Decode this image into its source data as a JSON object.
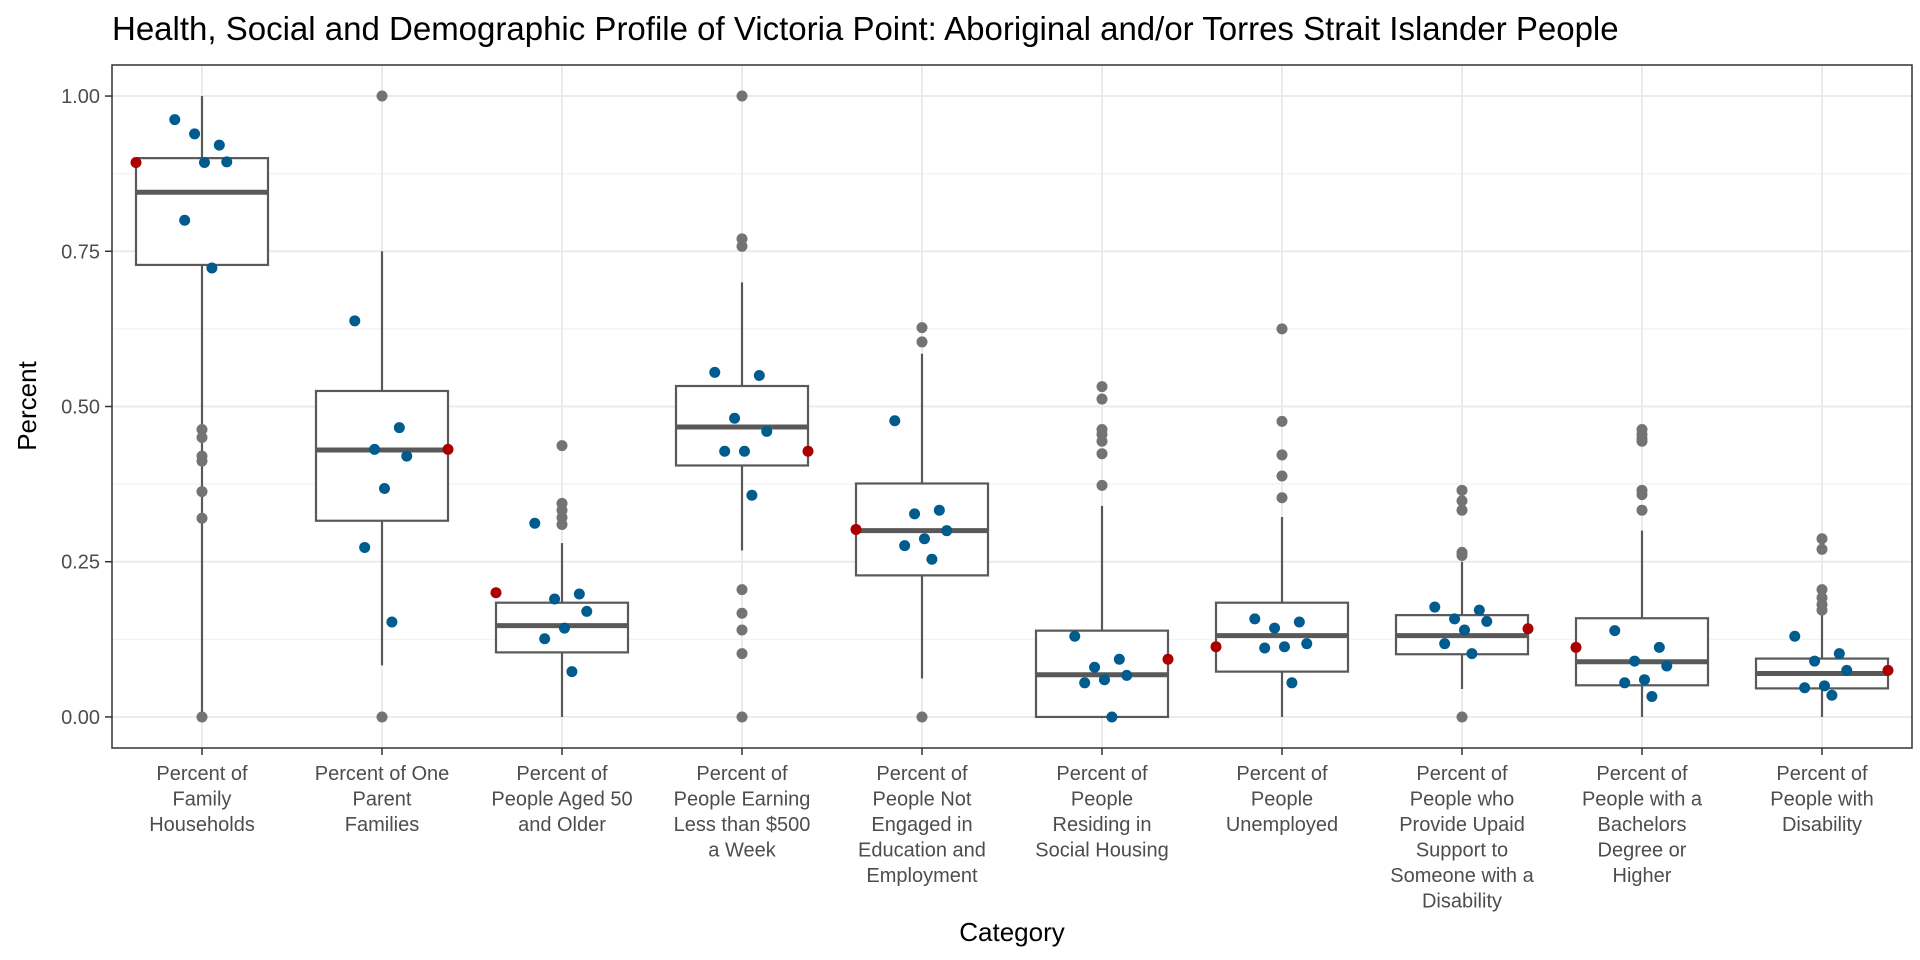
{
  "chart_data": {
    "type": "box",
    "title": "Health, Social and Demographic Profile of Victoria Point: Aboriginal and/or Torres Strait Islander People",
    "xlabel": "Category",
    "ylabel": "Percent",
    "ylim": [
      -0.05,
      1.05
    ],
    "yticks": [
      0.0,
      0.25,
      0.5,
      0.75,
      1.0
    ],
    "ytick_labels": [
      "0.00",
      "0.25",
      "0.50",
      "0.75",
      "1.00"
    ],
    "grid": true,
    "colors": {
      "box": "#595959",
      "outlier": "#737373",
      "comparison_point": "#005b8e",
      "highlight_point": "#aa0000",
      "grid_major": "#ebebeb",
      "panel_border": "#333333"
    },
    "categories": [
      {
        "label": [
          "Percent of",
          "Family",
          "Households"
        ],
        "box": {
          "whisker_low": 0.0,
          "q1": 0.728,
          "median": 0.845,
          "q3": 0.9,
          "whisker_high": 1.0
        },
        "outliers": [
          0.0,
          0.32,
          0.363,
          0.412,
          0.42,
          0.45,
          0.463
        ],
        "points": [
          0.962,
          0.921,
          0.939,
          0.894,
          0.893,
          0.8,
          0.723
        ],
        "highlight": 0.893
      },
      {
        "label": [
          "Percent of One",
          "Parent",
          "Families"
        ],
        "box": {
          "whisker_low": 0.083,
          "q1": 0.316,
          "median": 0.43,
          "q3": 0.525,
          "whisker_high": 0.75
        },
        "outliers": [
          0.0,
          1.0
        ],
        "points": [
          0.638,
          0.466,
          0.431,
          0.42,
          0.368,
          0.273,
          0.153
        ],
        "highlight": 0.431
      },
      {
        "label": [
          "Percent of",
          "People Aged 50",
          "and Older"
        ],
        "box": {
          "whisker_low": 0.0,
          "q1": 0.104,
          "median": 0.147,
          "q3": 0.184,
          "whisker_high": 0.28
        },
        "outliers": [
          0.437,
          0.344,
          0.333,
          0.321,
          0.31
        ],
        "points": [
          0.312,
          0.198,
          0.19,
          0.17,
          0.143,
          0.126,
          0.073
        ],
        "highlight": 0.2
      },
      {
        "label": [
          "Percent of",
          "People Earning",
          "Less than $500",
          "a Week"
        ],
        "box": {
          "whisker_low": 0.268,
          "q1": 0.405,
          "median": 0.467,
          "q3": 0.533,
          "whisker_high": 0.7
        },
        "outliers": [
          1.0,
          0.77,
          0.758,
          0.205,
          0.167,
          0.14,
          0.102,
          0.0
        ],
        "points": [
          0.555,
          0.55,
          0.481,
          0.46,
          0.428,
          0.428,
          0.357
        ],
        "highlight": 0.428
      },
      {
        "label": [
          "Percent of",
          "People Not",
          "Engaged in",
          "Education and",
          "Employment"
        ],
        "box": {
          "whisker_low": 0.062,
          "q1": 0.228,
          "median": 0.3,
          "q3": 0.376,
          "whisker_high": 0.585
        },
        "outliers": [
          0.627,
          0.604,
          0.0
        ],
        "points": [
          0.477,
          0.333,
          0.327,
          0.3,
          0.287,
          0.276,
          0.254
        ],
        "highlight": 0.302
      },
      {
        "label": [
          "Percent of",
          "People",
          "Residing in",
          "Social Housing"
        ],
        "box": {
          "whisker_low": 0.0,
          "q1": 0.0,
          "median": 0.068,
          "q3": 0.139,
          "whisker_high": 0.34
        },
        "outliers": [
          0.532,
          0.512,
          0.463,
          0.455,
          0.444,
          0.424,
          0.373
        ],
        "points": [
          0.13,
          0.093,
          0.08,
          0.067,
          0.06,
          0.055,
          0.0
        ],
        "highlight": 0.093
      },
      {
        "label": [
          "Percent of",
          "People",
          "Unemployed"
        ],
        "box": {
          "whisker_low": 0.0,
          "q1": 0.073,
          "median": 0.131,
          "q3": 0.184,
          "whisker_high": 0.322
        },
        "outliers": [
          0.625,
          0.476,
          0.422,
          0.388,
          0.353
        ],
        "points": [
          0.158,
          0.153,
          0.143,
          0.118,
          0.113,
          0.111,
          0.055
        ],
        "highlight": 0.113
      },
      {
        "label": [
          "Percent of",
          "People who",
          "Provide Upaid",
          "Support to",
          "Someone with a",
          "Disability"
        ],
        "box": {
          "whisker_low": 0.045,
          "q1": 0.101,
          "median": 0.131,
          "q3": 0.164,
          "whisker_high": 0.25
        },
        "outliers": [
          0.365,
          0.348,
          0.333,
          0.265,
          0.26,
          0.0
        ],
        "points": [
          0.177,
          0.172,
          0.158,
          0.154,
          0.14,
          0.118,
          0.102
        ],
        "highlight": 0.142
      },
      {
        "label": [
          "Percent of",
          "People with a",
          "Bachelors",
          "Degree or",
          "Higher"
        ],
        "box": {
          "whisker_low": 0.0,
          "q1": 0.051,
          "median": 0.089,
          "q3": 0.159,
          "whisker_high": 0.3
        },
        "outliers": [
          0.463,
          0.455,
          0.448,
          0.444,
          0.365,
          0.358,
          0.333
        ],
        "points": [
          0.139,
          0.112,
          0.09,
          0.082,
          0.06,
          0.055,
          0.033
        ],
        "highlight": 0.112
      },
      {
        "label": [
          "Percent of",
          "People with",
          "Disability"
        ],
        "box": {
          "whisker_low": 0.0,
          "q1": 0.046,
          "median": 0.07,
          "q3": 0.094,
          "whisker_high": 0.165
        },
        "outliers": [
          0.287,
          0.27,
          0.205,
          0.192,
          0.181,
          0.172
        ],
        "points": [
          0.13,
          0.102,
          0.09,
          0.075,
          0.05,
          0.047,
          0.035
        ],
        "highlight": 0.075
      }
    ]
  }
}
